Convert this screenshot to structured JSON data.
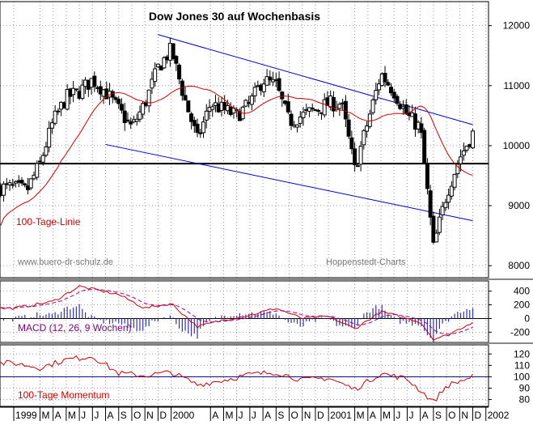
{
  "chart_data": [
    {
      "type": "candlestick",
      "title": "Dow Jones 30 auf Wochenbasis",
      "ylim": [
        7800,
        12400
      ],
      "yticks": [
        8000,
        9000,
        10000,
        11000,
        12000
      ],
      "yticklabels": [
        "8000",
        "9000",
        "10000",
        "11000",
        "12000"
      ],
      "x_range": [
        "1998-11",
        "2001-12"
      ],
      "horizontal_line": 9700,
      "channel": {
        "upper": {
          "from": [
            "1999-12",
            11850
          ],
          "to": [
            "2001-12",
            10350
          ]
        },
        "lower": {
          "from": [
            "1999-08",
            10020
          ],
          "to": [
            "2001-12",
            8750
          ]
        }
      },
      "ma_label": "100-Tage-Linie",
      "source_left": "www.buero-dr-schulz.de",
      "source_right": "Hoppenstedt-Charts",
      "weekly_close_anchors": [
        [
          "1999-01",
          9300
        ],
        [
          "1999-02",
          9250
        ],
        [
          "1999-03",
          9700
        ],
        [
          "1999-04",
          10400
        ],
        [
          "1999-05",
          10800
        ],
        [
          "1999-06",
          10900
        ],
        [
          "1999-07",
          11100
        ],
        [
          "1999-08",
          10900
        ],
        [
          "1999-09",
          10600
        ],
        [
          "1999-10",
          10300
        ],
        [
          "1999-11",
          10700
        ],
        [
          "1999-12",
          11300
        ],
        [
          "2000-01",
          11600
        ],
        [
          "2000-02",
          10800
        ],
        [
          "2000-03",
          10100
        ],
        [
          "2000-04",
          10700
        ],
        [
          "2000-05",
          10600
        ],
        [
          "2000-06",
          10500
        ],
        [
          "2000-07",
          10700
        ],
        [
          "2000-08",
          11100
        ],
        [
          "2000-09",
          11000
        ],
        [
          "2000-10",
          10400
        ],
        [
          "2000-11",
          10500
        ],
        [
          "2000-12",
          10600
        ],
        [
          "2001-01",
          10700
        ],
        [
          "2001-02",
          10700
        ],
        [
          "2001-03",
          9600
        ],
        [
          "2001-04",
          10400
        ],
        [
          "2001-05",
          11200
        ],
        [
          "2001-06",
          10900
        ],
        [
          "2001-07",
          10500
        ],
        [
          "2001-08",
          10300
        ],
        [
          "2001-09",
          8300
        ],
        [
          "2001-10",
          9200
        ],
        [
          "2001-11",
          9800
        ],
        [
          "2001-12",
          10200
        ]
      ]
    },
    {
      "type": "line",
      "label": "MACD (12, 26, 9 Wochen)",
      "ylim": [
        -350,
        550
      ],
      "yticks": [
        400,
        200,
        0,
        -200
      ],
      "yticklabels": [
        "400",
        "200",
        "0",
        "-200"
      ],
      "macd_anchors": [
        [
          "1999-01",
          150
        ],
        [
          "1999-04",
          250
        ],
        [
          "1999-06",
          470
        ],
        [
          "1999-09",
          350
        ],
        [
          "1999-11",
          150
        ],
        [
          "2000-01",
          220
        ],
        [
          "2000-03",
          -120
        ],
        [
          "2000-05",
          -20
        ],
        [
          "2000-07",
          50
        ],
        [
          "2000-09",
          150
        ],
        [
          "2000-11",
          0
        ],
        [
          "2001-01",
          30
        ],
        [
          "2001-03",
          -150
        ],
        [
          "2001-05",
          100
        ],
        [
          "2001-08",
          -50
        ],
        [
          "2001-09",
          -300
        ],
        [
          "2001-10",
          -250
        ],
        [
          "2001-12",
          -50
        ]
      ]
    },
    {
      "type": "line",
      "label": "100-Tage Momentum",
      "ylim": [
        74,
        128
      ],
      "yticks": [
        120,
        110,
        100,
        90,
        80
      ],
      "yticklabels": [
        "120",
        "110",
        "100",
        "90",
        "80"
      ],
      "reference_line": 100,
      "momentum_anchors": [
        [
          "1999-01",
          112
        ],
        [
          "1999-03",
          108
        ],
        [
          "1999-05",
          115
        ],
        [
          "1999-07",
          118
        ],
        [
          "1999-09",
          103
        ],
        [
          "1999-11",
          101
        ],
        [
          "2000-01",
          104
        ],
        [
          "2000-03",
          93
        ],
        [
          "2000-05",
          97
        ],
        [
          "2000-07",
          102
        ],
        [
          "2000-09",
          104
        ],
        [
          "2000-11",
          97
        ],
        [
          "2001-01",
          99
        ],
        [
          "2001-03",
          89
        ],
        [
          "2001-05",
          103
        ],
        [
          "2001-07",
          98
        ],
        [
          "2001-09",
          78
        ],
        [
          "2001-10",
          92
        ],
        [
          "2001-12",
          100
        ]
      ]
    }
  ],
  "x_axis": {
    "ticks": [
      {
        "date": "1999-01",
        "label": "1999"
      },
      {
        "date": "1999-03",
        "label": "M"
      },
      {
        "date": "1999-04",
        "label": "A"
      },
      {
        "date": "1999-05",
        "label": "M"
      },
      {
        "date": "1999-06",
        "label": "J"
      },
      {
        "date": "1999-07",
        "label": "J"
      },
      {
        "date": "1999-08",
        "label": "A"
      },
      {
        "date": "1999-09",
        "label": "S"
      },
      {
        "date": "1999-10",
        "label": "O"
      },
      {
        "date": "1999-11",
        "label": "N"
      },
      {
        "date": "1999-12",
        "label": "D"
      },
      {
        "date": "2000-01",
        "label": "2000"
      },
      {
        "date": "2000-04",
        "label": "A"
      },
      {
        "date": "2000-05",
        "label": "M"
      },
      {
        "date": "2000-06",
        "label": "J"
      },
      {
        "date": "2000-07",
        "label": "J"
      },
      {
        "date": "2000-08",
        "label": "A"
      },
      {
        "date": "2000-09",
        "label": "S"
      },
      {
        "date": "2000-10",
        "label": "O"
      },
      {
        "date": "2000-11",
        "label": "N"
      },
      {
        "date": "2000-12",
        "label": "D"
      },
      {
        "date": "2001-01",
        "label": "2001"
      },
      {
        "date": "2001-03",
        "label": "M"
      },
      {
        "date": "2001-04",
        "label": "A"
      },
      {
        "date": "2001-05",
        "label": "M"
      },
      {
        "date": "2001-06",
        "label": "J"
      },
      {
        "date": "2001-07",
        "label": "J"
      },
      {
        "date": "2001-08",
        "label": "A"
      },
      {
        "date": "2001-09",
        "label": "S"
      },
      {
        "date": "2001-10",
        "label": "O"
      },
      {
        "date": "2001-11",
        "label": "N"
      },
      {
        "date": "2001-12",
        "label": "D"
      },
      {
        "date": "2002-01",
        "label": "2002"
      }
    ]
  },
  "colors": {
    "price": "#000000",
    "ma": "#cc0000",
    "channel": "#0000cc",
    "macd": "#cc0000",
    "signal": "#990099",
    "momentum": "#cc0000",
    "reference": "#000080",
    "grid": "#999999",
    "label": "#cc0000",
    "macd_label": "#800080"
  }
}
